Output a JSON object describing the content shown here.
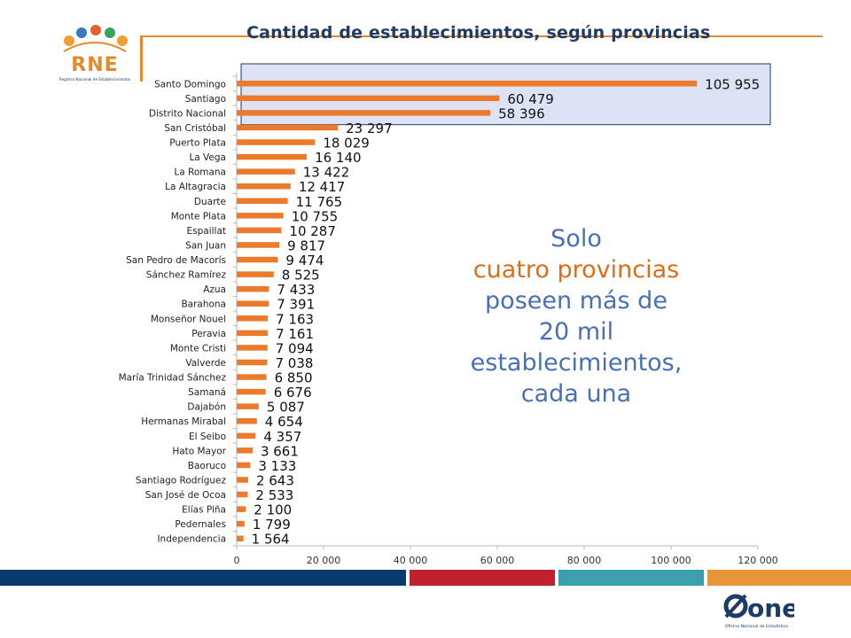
{
  "title": "Cantidad de establecimientos, según provincias",
  "logo": {
    "text": "RNE",
    "subtitle": "Registro Nacional de Establecimientos"
  },
  "annotation": {
    "line1": "Solo",
    "line2": "cuatro provincias",
    "line3": "poseen más de",
    "line4": "20 mil",
    "line5": "establecimientos,",
    "line6": "cada una"
  },
  "footer_logo": {
    "text": "one",
    "subtitle": "Oficina Nacional de Estadística"
  },
  "colors": {
    "bar": "#ec7a2c",
    "title": "#1e3a66",
    "annotation": "#4a6fb5",
    "annotation_highlight": "#dd6e18",
    "highlight_box_fill": "#dde3f5",
    "highlight_box_stroke": "#1e3a66",
    "footer": [
      "#0b3a6e",
      "#c0212f",
      "#3aa0ad",
      "#e7953a"
    ]
  },
  "chart_data": {
    "type": "bar",
    "orientation": "horizontal",
    "title": "Cantidad de establecimientos, según provincias",
    "categories": [
      "Santo Domingo",
      "Santiago",
      "Distrito Nacional",
      "San Cristóbal",
      "Puerto Plata",
      "La Vega",
      "La Romana",
      "La Altagracia",
      "Duarte",
      "Monte Plata",
      "Espaillat",
      "San Juan",
      "San Pedro de Macorís",
      "Sánchez Ramírez",
      "Azua",
      "Barahona",
      "Monseñor Nouel",
      "Peravia",
      "Monte Cristi",
      "Valverde",
      "María Trinidad Sánchez",
      "Samaná",
      "Dajabón",
      "Hermanas Mirabal",
      "El Seibo",
      "Hato Mayor",
      "Baoruco",
      "Santiago Rodríguez",
      "San José de Ocoa",
      "Elías Piña",
      "Pedernales",
      "Independencia"
    ],
    "values": [
      105955,
      60479,
      58396,
      23297,
      18029,
      16140,
      13422,
      12417,
      11765,
      10755,
      10287,
      9817,
      9474,
      8525,
      7433,
      7391,
      7163,
      7161,
      7094,
      7038,
      6850,
      6676,
      5087,
      4654,
      4357,
      3661,
      3133,
      2643,
      2533,
      2100,
      1799,
      1564
    ],
    "value_labels": [
      "105 955",
      "60 479",
      "58 396",
      "23 297",
      "18 029",
      "16 140",
      "13 422",
      "12 417",
      "11 765",
      "10 755",
      "10 287",
      "9 817",
      "9 474",
      "8 525",
      "7 433",
      "7 391",
      "7 163",
      "7 161",
      "7 094",
      "7 038",
      "6 850",
      "6 676",
      "5 087",
      "4 654",
      "4 357",
      "3 661",
      "3 133",
      "2 643",
      "2 533",
      "2 100",
      "1 799",
      "1 564"
    ],
    "xlim": [
      0,
      120000
    ],
    "xticks": [
      0,
      20000,
      40000,
      60000,
      80000,
      100000,
      120000
    ],
    "xtick_labels": [
      "0",
      "20 000",
      "40 000",
      "60 000",
      "80 000",
      "100 000",
      "120 000"
    ],
    "highlighted_categories": [
      "Santo Domingo",
      "Santiago",
      "Distrito Nacional"
    ],
    "grid": false,
    "legend": "none"
  }
}
